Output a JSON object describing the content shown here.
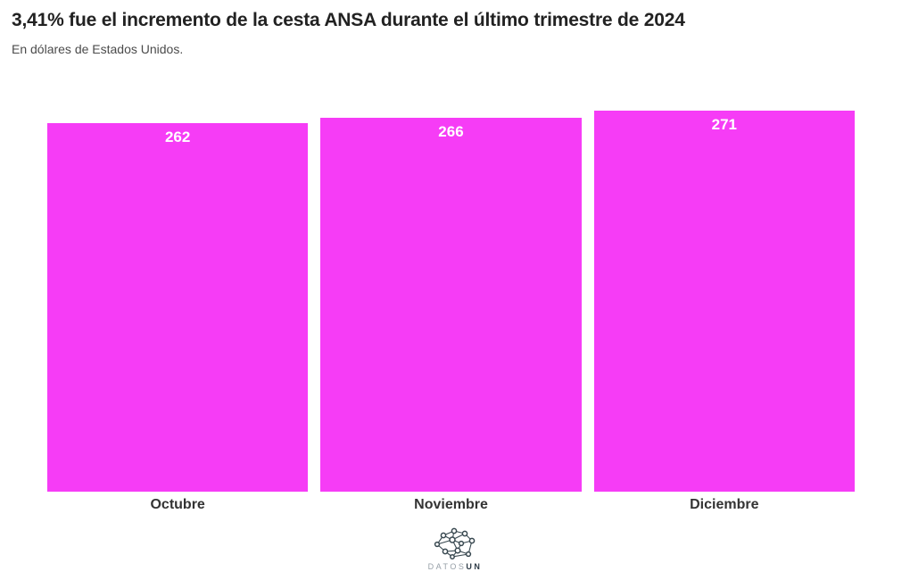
{
  "header": {
    "title": "3,41% fue el incremento de la cesta ANSA durante el último trimestre de 2024",
    "subtitle": "En dólares de Estados Unidos."
  },
  "chart_data": {
    "type": "bar",
    "categories": [
      "Octubre",
      "Noviembre",
      "Diciembre"
    ],
    "values": [
      262,
      266,
      271
    ],
    "title": "3,41% fue el incremento de la cesta ANSA durante el último trimestre de 2024",
    "subtitle": "En dólares de Estados Unidos.",
    "xlabel": "",
    "ylabel": "",
    "ylim": [
      0,
      271
    ],
    "grid": false,
    "legend_position": "none",
    "value_labels_inside_bars": true,
    "colors": {
      "bar": "#f63cf6",
      "value_label": "#ffffff",
      "category_label": "#333333",
      "title": "#222222",
      "subtitle": "#4b4b4b"
    }
  },
  "footer": {
    "logo_icon": "network-graph-icon",
    "logo_text_light": "DATOS",
    "logo_text_bold": "UN"
  }
}
